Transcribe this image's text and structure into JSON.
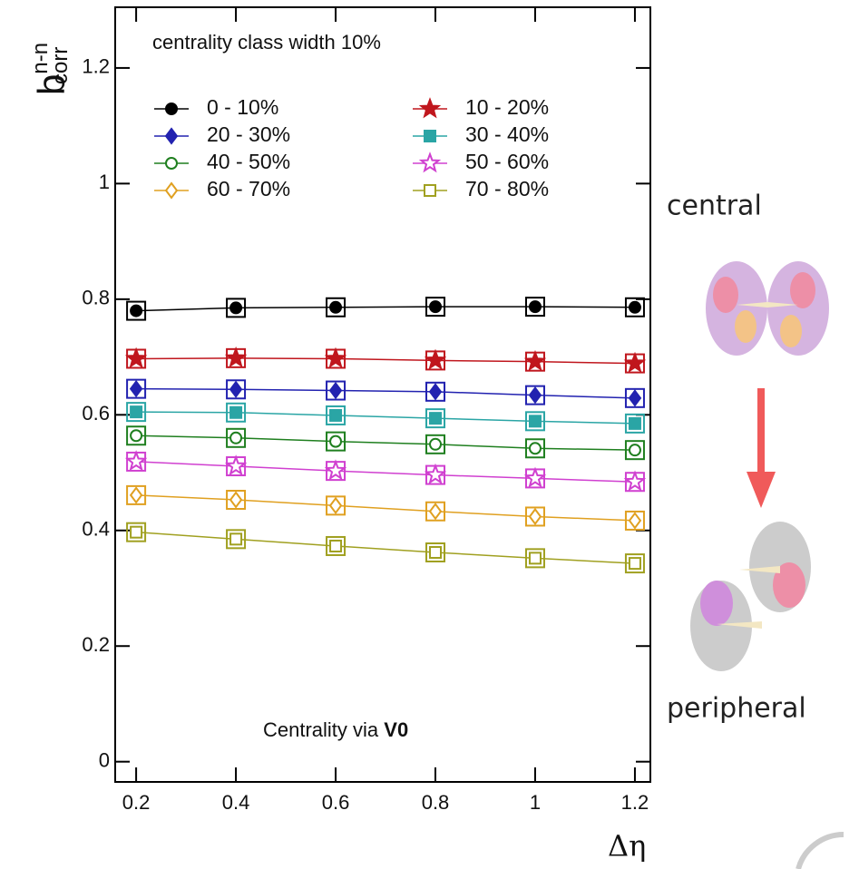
{
  "chart_data": {
    "type": "line",
    "y_label": "b",
    "y_label_sup": "n-n",
    "y_label_sub": "corr",
    "x_label": "Δη",
    "legend_title": "centrality class width 10%",
    "annotation": "Centrality via ",
    "annotation_bold": "V0",
    "side_top": "central",
    "side_bottom": "peripheral",
    "x": [
      0.2,
      0.4,
      0.6,
      0.8,
      1.0,
      1.2
    ],
    "xlim": [
      0.158,
      1.231
    ],
    "xticks": [
      0.2,
      0.4,
      0.6,
      0.8,
      {
        "value": 1.0,
        "label": "1"
      },
      1.2
    ],
    "ylim": [
      -0.035,
      1.305
    ],
    "yticks": [
      0,
      0.2,
      0.4,
      0.6,
      0.8,
      1,
      1.2
    ],
    "series": [
      {
        "name": "0 - 10%",
        "color": "#000000",
        "marker": "circle",
        "filled": true,
        "values": [
          0.78,
          0.785,
          0.786,
          0.787,
          0.787,
          0.786
        ]
      },
      {
        "name": "10 - 20%",
        "color": "#c0161d",
        "marker": "star",
        "filled": true,
        "values": [
          0.697,
          0.698,
          0.697,
          0.694,
          0.692,
          0.689
        ]
      },
      {
        "name": "20 - 30%",
        "color": "#2222b0",
        "marker": "diamond",
        "filled": true,
        "values": [
          0.645,
          0.644,
          0.642,
          0.64,
          0.634,
          0.629
        ]
      },
      {
        "name": "30 - 40%",
        "color": "#2aa5a5",
        "marker": "square",
        "filled": true,
        "values": [
          0.605,
          0.604,
          0.599,
          0.594,
          0.589,
          0.585
        ]
      },
      {
        "name": "40 - 50%",
        "color": "#1f7f1f",
        "marker": "circle",
        "filled": false,
        "values": [
          0.564,
          0.56,
          0.554,
          0.549,
          0.542,
          0.539
        ]
      },
      {
        "name": "50 - 60%",
        "color": "#d040d0",
        "marker": "star",
        "filled": false,
        "values": [
          0.519,
          0.511,
          0.503,
          0.496,
          0.49,
          0.484
        ]
      },
      {
        "name": "60 - 70%",
        "color": "#e0a020",
        "marker": "diamond",
        "filled": false,
        "values": [
          0.461,
          0.453,
          0.443,
          0.433,
          0.424,
          0.417
        ]
      },
      {
        "name": "70 - 80%",
        "color": "#a0a020",
        "marker": "square",
        "filled": false,
        "values": [
          0.397,
          0.385,
          0.373,
          0.362,
          0.352,
          0.343
        ]
      }
    ]
  }
}
